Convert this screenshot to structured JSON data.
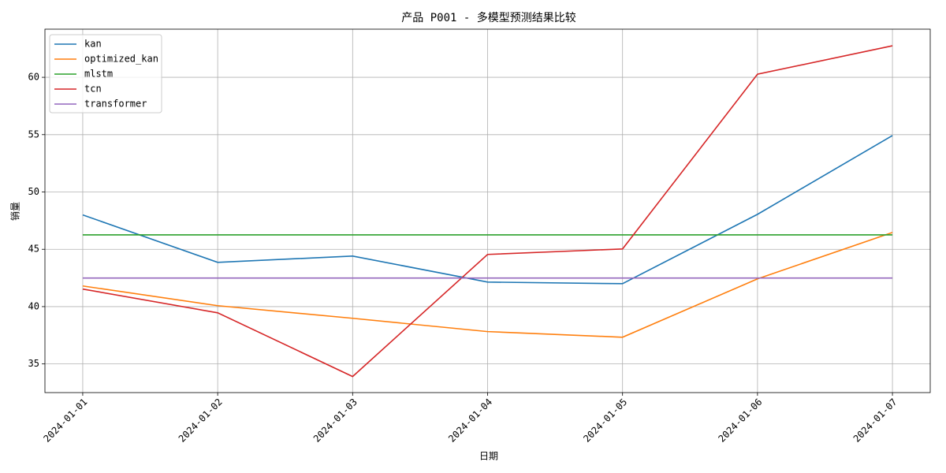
{
  "chart_data": {
    "type": "line",
    "title": "产品 P001 - 多模型预测结果比较",
    "x_label": "日期",
    "y_label": "销量",
    "categories": [
      "2024-01-01",
      "2024-01-02",
      "2024-01-03",
      "2024-01-04",
      "2024-01-05",
      "2024-01-06",
      "2024-01-07"
    ],
    "series": [
      {
        "name": "kan",
        "color": "#1f77b4",
        "values": [
          48.0,
          43.86,
          44.41,
          42.14,
          42.0,
          48.05,
          54.92
        ]
      },
      {
        "name": "optimized_kan",
        "color": "#ff7f0e",
        "values": [
          41.8,
          40.08,
          38.98,
          37.82,
          37.33,
          42.42,
          46.47
        ]
      },
      {
        "name": "mlstm",
        "color": "#2ca02c",
        "values": [
          46.26,
          46.26,
          46.26,
          46.26,
          46.26,
          46.26,
          46.26
        ]
      },
      {
        "name": "tcn",
        "color": "#d62728",
        "values": [
          41.53,
          39.46,
          33.9,
          44.55,
          45.03,
          60.27,
          62.75
        ]
      },
      {
        "name": "transformer",
        "color": "#9467bd",
        "values": [
          42.49,
          42.49,
          42.49,
          42.49,
          42.49,
          42.49,
          42.49
        ]
      }
    ],
    "ylim": [
      32.5,
      64.2
    ],
    "yticks": [
      35,
      40,
      45,
      50,
      55,
      60
    ],
    "grid": true,
    "legend": "upper-left"
  }
}
